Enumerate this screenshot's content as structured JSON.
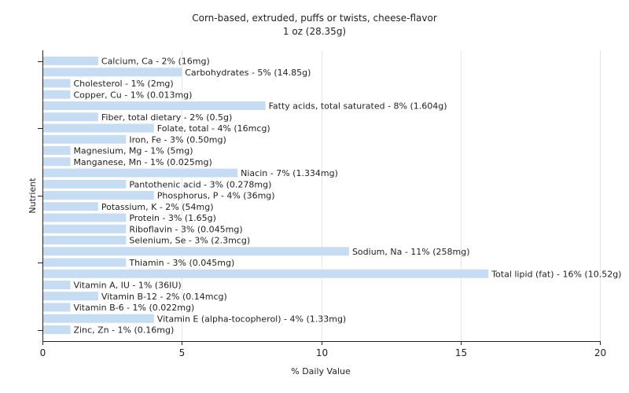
{
  "chart_data": {
    "type": "bar",
    "orientation": "horizontal",
    "title": "Corn-based, extruded, puffs or twists, cheese-flavor",
    "subtitle": "1 oz (28.35g)",
    "xlabel": "% Daily Value",
    "ylabel": "Nutrient",
    "xlim": [
      0,
      20
    ],
    "xticks": [
      0,
      5,
      10,
      15,
      20
    ],
    "grid": true,
    "bar_color": "#c6dcf3",
    "categories": [
      "Calcium, Ca",
      "Carbohydrates",
      "Cholesterol",
      "Copper, Cu",
      "Fatty acids, total saturated",
      "Fiber, total dietary",
      "Folate, total",
      "Iron, Fe",
      "Magnesium, Mg",
      "Manganese, Mn",
      "Niacin",
      "Pantothenic acid",
      "Phosphorus, P",
      "Potassium, K",
      "Protein",
      "Riboflavin",
      "Selenium, Se",
      "Sodium, Na",
      "Thiamin",
      "Total lipid (fat)",
      "Vitamin A, IU",
      "Vitamin B-12",
      "Vitamin B-6",
      "Vitamin E (alpha-tocopherol)",
      "Zinc, Zn"
    ],
    "values": [
      2,
      5,
      1,
      1,
      8,
      2,
      4,
      3,
      1,
      1,
      7,
      3,
      4,
      2,
      3,
      3,
      3,
      11,
      3,
      16,
      1,
      2,
      1,
      4,
      1
    ],
    "labels": [
      "Calcium, Ca - 2% (16mg)",
      "Carbohydrates - 5% (14.85g)",
      "Cholesterol - 1% (2mg)",
      "Copper, Cu - 1% (0.013mg)",
      "Fatty acids, total saturated - 8% (1.604g)",
      "Fiber, total dietary - 2% (0.5g)",
      "Folate, total - 4% (16mcg)",
      "Iron, Fe - 3% (0.50mg)",
      "Magnesium, Mg - 1% (5mg)",
      "Manganese, Mn - 1% (0.025mg)",
      "Niacin - 7% (1.334mg)",
      "Pantothenic acid - 3% (0.278mg)",
      "Phosphorus, P - 4% (36mg)",
      "Potassium, K - 2% (54mg)",
      "Protein - 3% (1.65g)",
      "Riboflavin - 3% (0.045mg)",
      "Selenium, Se - 3% (2.3mcg)",
      "Sodium, Na - 11% (258mg)",
      "Thiamin - 3% (0.045mg)",
      "Total lipid (fat) - 16% (10.52g)",
      "Vitamin A, IU - 1% (36IU)",
      "Vitamin B-12 - 2% (0.14mcg)",
      "Vitamin B-6 - 1% (0.022mg)",
      "Vitamin E (alpha-tocopherol) - 4% (1.33mg)",
      "Zinc, Zn - 1% (0.16mg)"
    ]
  }
}
